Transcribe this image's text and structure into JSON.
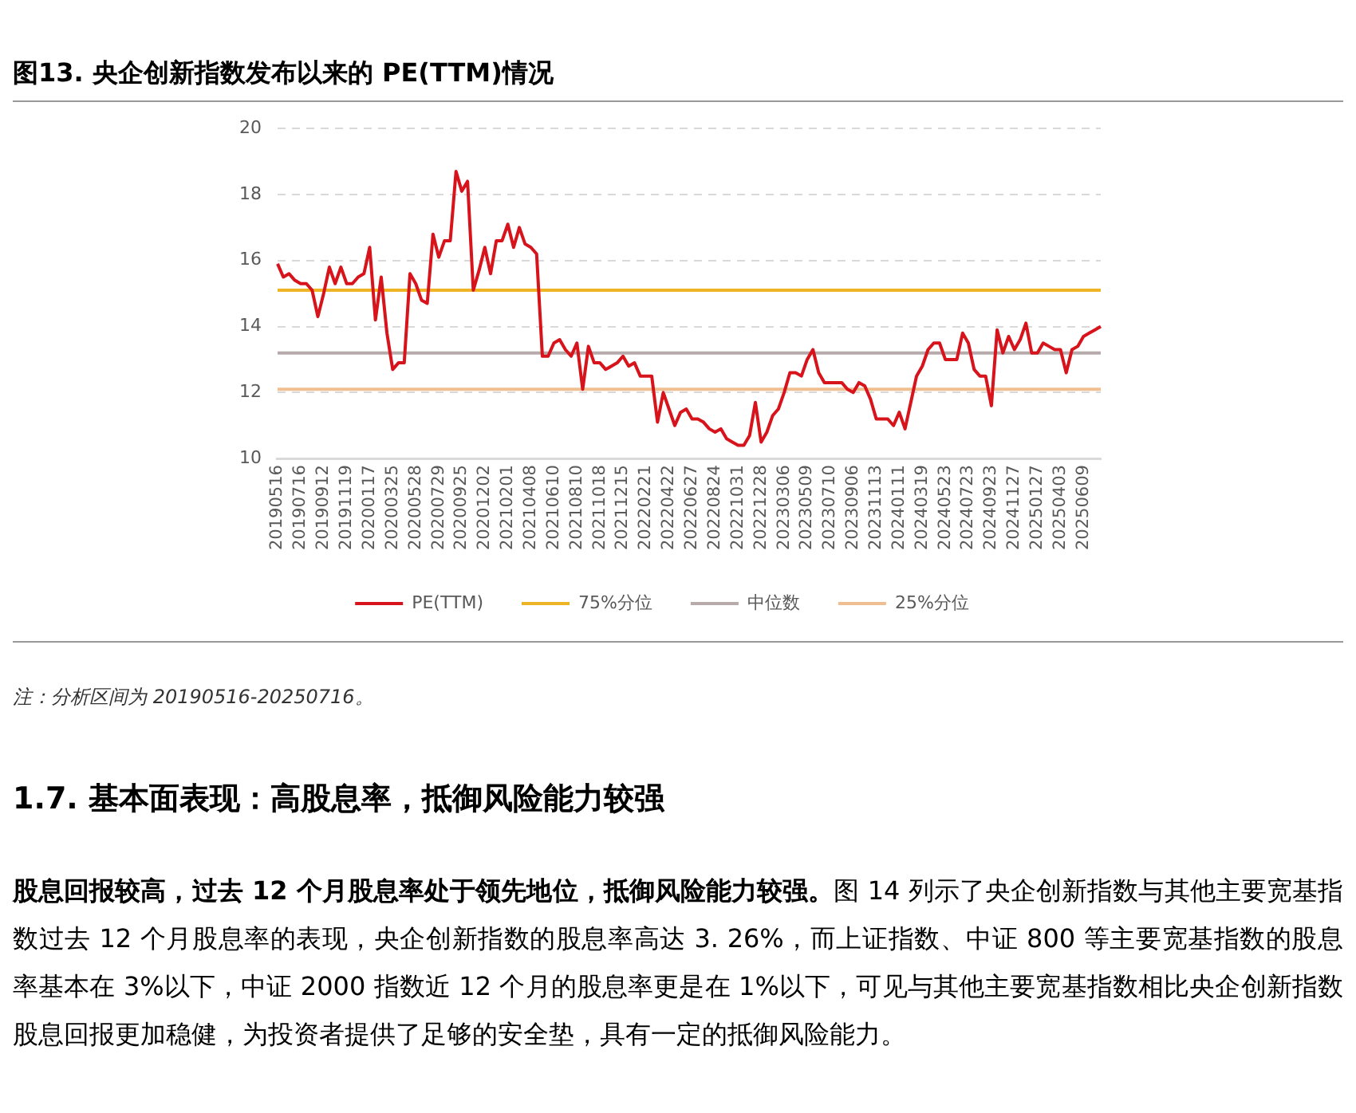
{
  "chart_data": {
    "type": "line",
    "title": "图13. 央企创新指数发布以来的 PE(TTM)情况",
    "categories": [
      "20190516",
      null,
      null,
      null,
      "20190716",
      null,
      null,
      null,
      "20190912",
      null,
      null,
      null,
      "20191119",
      null,
      null,
      null,
      "20200117",
      null,
      null,
      null,
      "20200325",
      null,
      null,
      null,
      "20200528",
      null,
      null,
      null,
      "20200729",
      null,
      null,
      null,
      "20200925",
      null,
      null,
      null,
      "20201202",
      null,
      null,
      null,
      "20210201",
      null,
      null,
      null,
      "20210408",
      null,
      null,
      null,
      "20210610",
      null,
      null,
      null,
      "20210810",
      null,
      null,
      null,
      "20211018",
      null,
      null,
      null,
      "20211215",
      null,
      null,
      null,
      "20220221",
      null,
      null,
      null,
      "20220422",
      null,
      null,
      null,
      "20220627",
      null,
      null,
      null,
      "20220824",
      null,
      null,
      null,
      "20221031",
      null,
      null,
      null,
      "20221228",
      null,
      null,
      null,
      "20230306",
      null,
      null,
      null,
      "20230509",
      null,
      null,
      null,
      "20230710",
      null,
      null,
      null,
      "20230906",
      null,
      null,
      null,
      "20231113",
      null,
      null,
      null,
      "20240111",
      null,
      null,
      null,
      "20240319",
      null,
      null,
      null,
      "20240523",
      null,
      null,
      null,
      "20240723",
      null,
      null,
      null,
      "20240923",
      null,
      null,
      null,
      "20241127",
      null,
      null,
      null,
      "20250127",
      null,
      null,
      null,
      "20250403",
      null,
      null,
      null,
      "20250609",
      null,
      null,
      null
    ],
    "series": [
      {
        "name": "PE(TTM)",
        "color": "#d7141b",
        "values": [
          15.9,
          15.5,
          15.6,
          15.4,
          15.3,
          15.3,
          15.1,
          14.3,
          15.0,
          15.8,
          15.3,
          15.8,
          15.3,
          15.3,
          15.5,
          15.6,
          16.4,
          14.2,
          15.5,
          13.8,
          12.7,
          12.9,
          12.9,
          15.6,
          15.3,
          14.8,
          14.7,
          16.8,
          16.1,
          16.6,
          16.6,
          18.7,
          18.1,
          18.4,
          15.1,
          15.7,
          16.4,
          15.6,
          16.6,
          16.6,
          17.1,
          16.4,
          17.0,
          16.5,
          16.4,
          16.2,
          13.1,
          13.1,
          13.5,
          13.6,
          13.3,
          13.1,
          13.5,
          12.1,
          13.4,
          12.9,
          12.9,
          12.7,
          12.8,
          12.9,
          13.1,
          12.8,
          12.9,
          12.5,
          12.5,
          12.5,
          11.1,
          12.0,
          11.5,
          11.0,
          11.4,
          11.5,
          11.2,
          11.2,
          11.1,
          10.9,
          10.8,
          10.9,
          10.6,
          10.5,
          10.4,
          10.4,
          10.7,
          11.7,
          10.5,
          10.8,
          11.3,
          11.5,
          12.0,
          12.6,
          12.6,
          12.5,
          13.0,
          13.3,
          12.6,
          12.3,
          12.3,
          12.3,
          12.3,
          12.1,
          12.0,
          12.3,
          12.2,
          11.8,
          11.2,
          11.2,
          11.2,
          11.0,
          11.4,
          10.9,
          11.7,
          12.5,
          12.8,
          13.3,
          13.5,
          13.5,
          13.0,
          13.0,
          13.0,
          13.8,
          13.5,
          12.7,
          12.5,
          12.5,
          11.6,
          13.9,
          13.2,
          13.7,
          13.3,
          13.6,
          14.1,
          13.2,
          13.2,
          13.5,
          13.4,
          13.3,
          13.3,
          12.6,
          13.3,
          13.4,
          13.7,
          13.8,
          13.9,
          14.0
        ]
      }
    ],
    "ref_lines": [
      {
        "axis": "y",
        "value": 15.1,
        "label": "75%分位",
        "color": "#efb326"
      },
      {
        "axis": "y",
        "value": 13.2,
        "label": "中位数",
        "color": "#b7aaab"
      },
      {
        "axis": "y",
        "value": 12.1,
        "label": "25%分位",
        "color": "#efbf92"
      }
    ],
    "ylim": [
      10,
      20
    ],
    "yticks": [
      10,
      12,
      14,
      16,
      18,
      20
    ],
    "grid": "y",
    "legend": "bottom",
    "marker": "none",
    "line_style": "solid",
    "annotations": [
      "注：分析区间为 20190516-20250716。",
      "1.7. 基本面表现：高股息率，抵御风险能力较强",
      "股息回报较高，过去 12 个月股息率处于领先地位，抵御风险能力较强。",
      "图 14 列示了央企创新指数与其他主要宽基指数过去 12 个月股息率的表现，央企创新指数的股息率高达 3. 26%，而上证指数、中证 800 等主要宽基指数的股息率基本在 3%以下，中证 2000 指数近 12 个月的股息率更是在 1%以下，可见与其他主要宽基指数相比央企创新指数股息回报更加稳健，为投资者提供了足够的安全垫，具有一定的抵御风险能力。"
    ]
  }
}
